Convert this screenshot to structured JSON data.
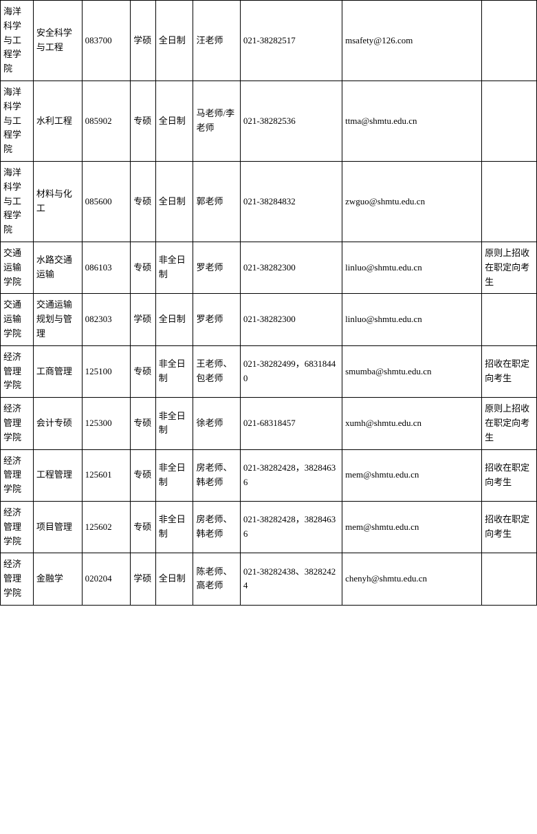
{
  "table": {
    "rows": [
      {
        "college": "海洋科学与工程学院",
        "major": "安全科学与工程",
        "code": "083700",
        "degree": "学硕",
        "mode": "全日制",
        "contact": "汪老师",
        "phone": "021-38282517",
        "email": "msafety@126.com",
        "note": ""
      },
      {
        "college": "海洋科学与工程学院",
        "major": "水利工程",
        "code": "085902",
        "degree": "专硕",
        "mode": "全日制",
        "contact": "马老师/李老师",
        "phone": "021-38282536",
        "email": "ttma@shmtu.edu.cn",
        "note": ""
      },
      {
        "college": "海洋科学与工程学院",
        "major": "材料与化工",
        "code": "085600",
        "degree": "专硕",
        "mode": "全日制",
        "contact": "郭老师",
        "phone": "021-38284832",
        "email": "zwguo@shmtu.edu.cn",
        "note": ""
      },
      {
        "college": "交通运输学院",
        "major": "水路交通运输",
        "code": "086103",
        "degree": "专硕",
        "mode": "非全日制",
        "contact": "罗老师",
        "phone": "021-38282300",
        "email": "linluo@shmtu.edu.cn",
        "note": "原则上招收在职定向考生"
      },
      {
        "college": "交通运输学院",
        "major": "交通运输规划与管理",
        "code": "082303",
        "degree": "学硕",
        "mode": "全日制",
        "contact": "罗老师",
        "phone": "021-38282300",
        "email": "linluo@shmtu.edu.cn",
        "note": ""
      },
      {
        "college": "经济管理学院",
        "major": "工商管理",
        "code": "125100",
        "degree": "专硕",
        "mode": "非全日制",
        "contact": "王老师、包老师",
        "phone": "021-38282499，68318440",
        "email": "smumba@shmtu.edu.cn",
        "note": "招收在职定向考生"
      },
      {
        "college": "经济管理学院",
        "major": "会计专硕",
        "code": "125300",
        "degree": "专硕",
        "mode": "非全日制",
        "contact": "徐老师",
        "phone": "021-68318457",
        "email": "xumh@shmtu.edu.cn",
        "note": "原则上招收在职定向考生"
      },
      {
        "college": "经济管理学院",
        "major": "工程管理",
        "code": "125601",
        "degree": "专硕",
        "mode": "非全日制",
        "contact": "房老师、韩老师",
        "phone": "021-38282428，38284636",
        "email": "mem@shmtu.edu.cn",
        "note": "招收在职定向考生"
      },
      {
        "college": "经济管理学院",
        "major": "项目管理",
        "code": "125602",
        "degree": "专硕",
        "mode": "非全日制",
        "contact": "房老师、韩老师",
        "phone": "021-38282428，38284636",
        "email": "mem@shmtu.edu.cn",
        "note": "招收在职定向考生"
      },
      {
        "college": "经济管理学院",
        "major": "金融学",
        "code": "020204",
        "degree": "学硕",
        "mode": "全日制",
        "contact": "陈老师、高老师",
        "phone": "021-38282438、38282424",
        "email": "chenyh@shmtu.edu.cn",
        "note": ""
      }
    ]
  }
}
